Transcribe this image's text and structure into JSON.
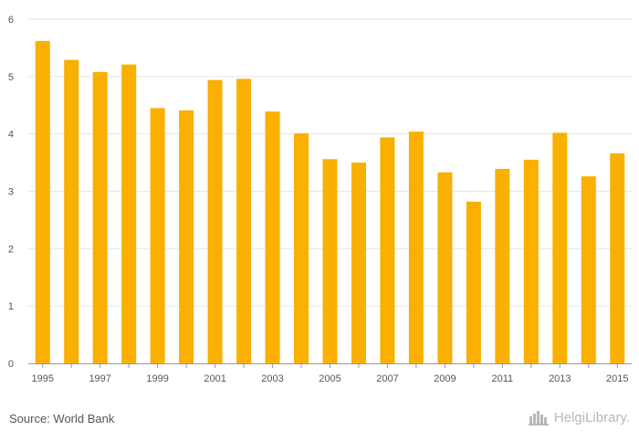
{
  "chart_data": {
    "type": "bar",
    "categories": [
      "1995",
      "1996",
      "1997",
      "1998",
      "1999",
      "2000",
      "2001",
      "2002",
      "2003",
      "2004",
      "2005",
      "2006",
      "2007",
      "2008",
      "2009",
      "2010",
      "2011",
      "2012",
      "2013",
      "2014",
      "2015"
    ],
    "values": [
      5.62,
      5.29,
      5.08,
      5.21,
      4.45,
      4.41,
      4.94,
      4.96,
      4.39,
      4.01,
      3.56,
      3.5,
      3.94,
      4.04,
      3.33,
      2.82,
      3.39,
      3.55,
      4.02,
      3.26,
      3.66
    ],
    "x_tick_labels": [
      "1995",
      "1997",
      "1999",
      "2001",
      "2003",
      "2005",
      "2007",
      "2009",
      "2011",
      "2013",
      "2015"
    ],
    "y_ticks": [
      "0",
      "1",
      "2",
      "3",
      "4",
      "5",
      "6"
    ],
    "ylim": [
      0,
      6
    ],
    "grid": true,
    "bar_color": "#f9b000",
    "title": "",
    "xlabel": "",
    "ylabel": ""
  },
  "footer": {
    "source": "Source: World Bank",
    "brand": "HelgiLibrary."
  },
  "colors": {
    "grid": "#e6e6e6",
    "axis_text": "#555555",
    "brand": "#b8b8b8"
  },
  "icons": {
    "brand_logo": "city-skyline-icon"
  }
}
